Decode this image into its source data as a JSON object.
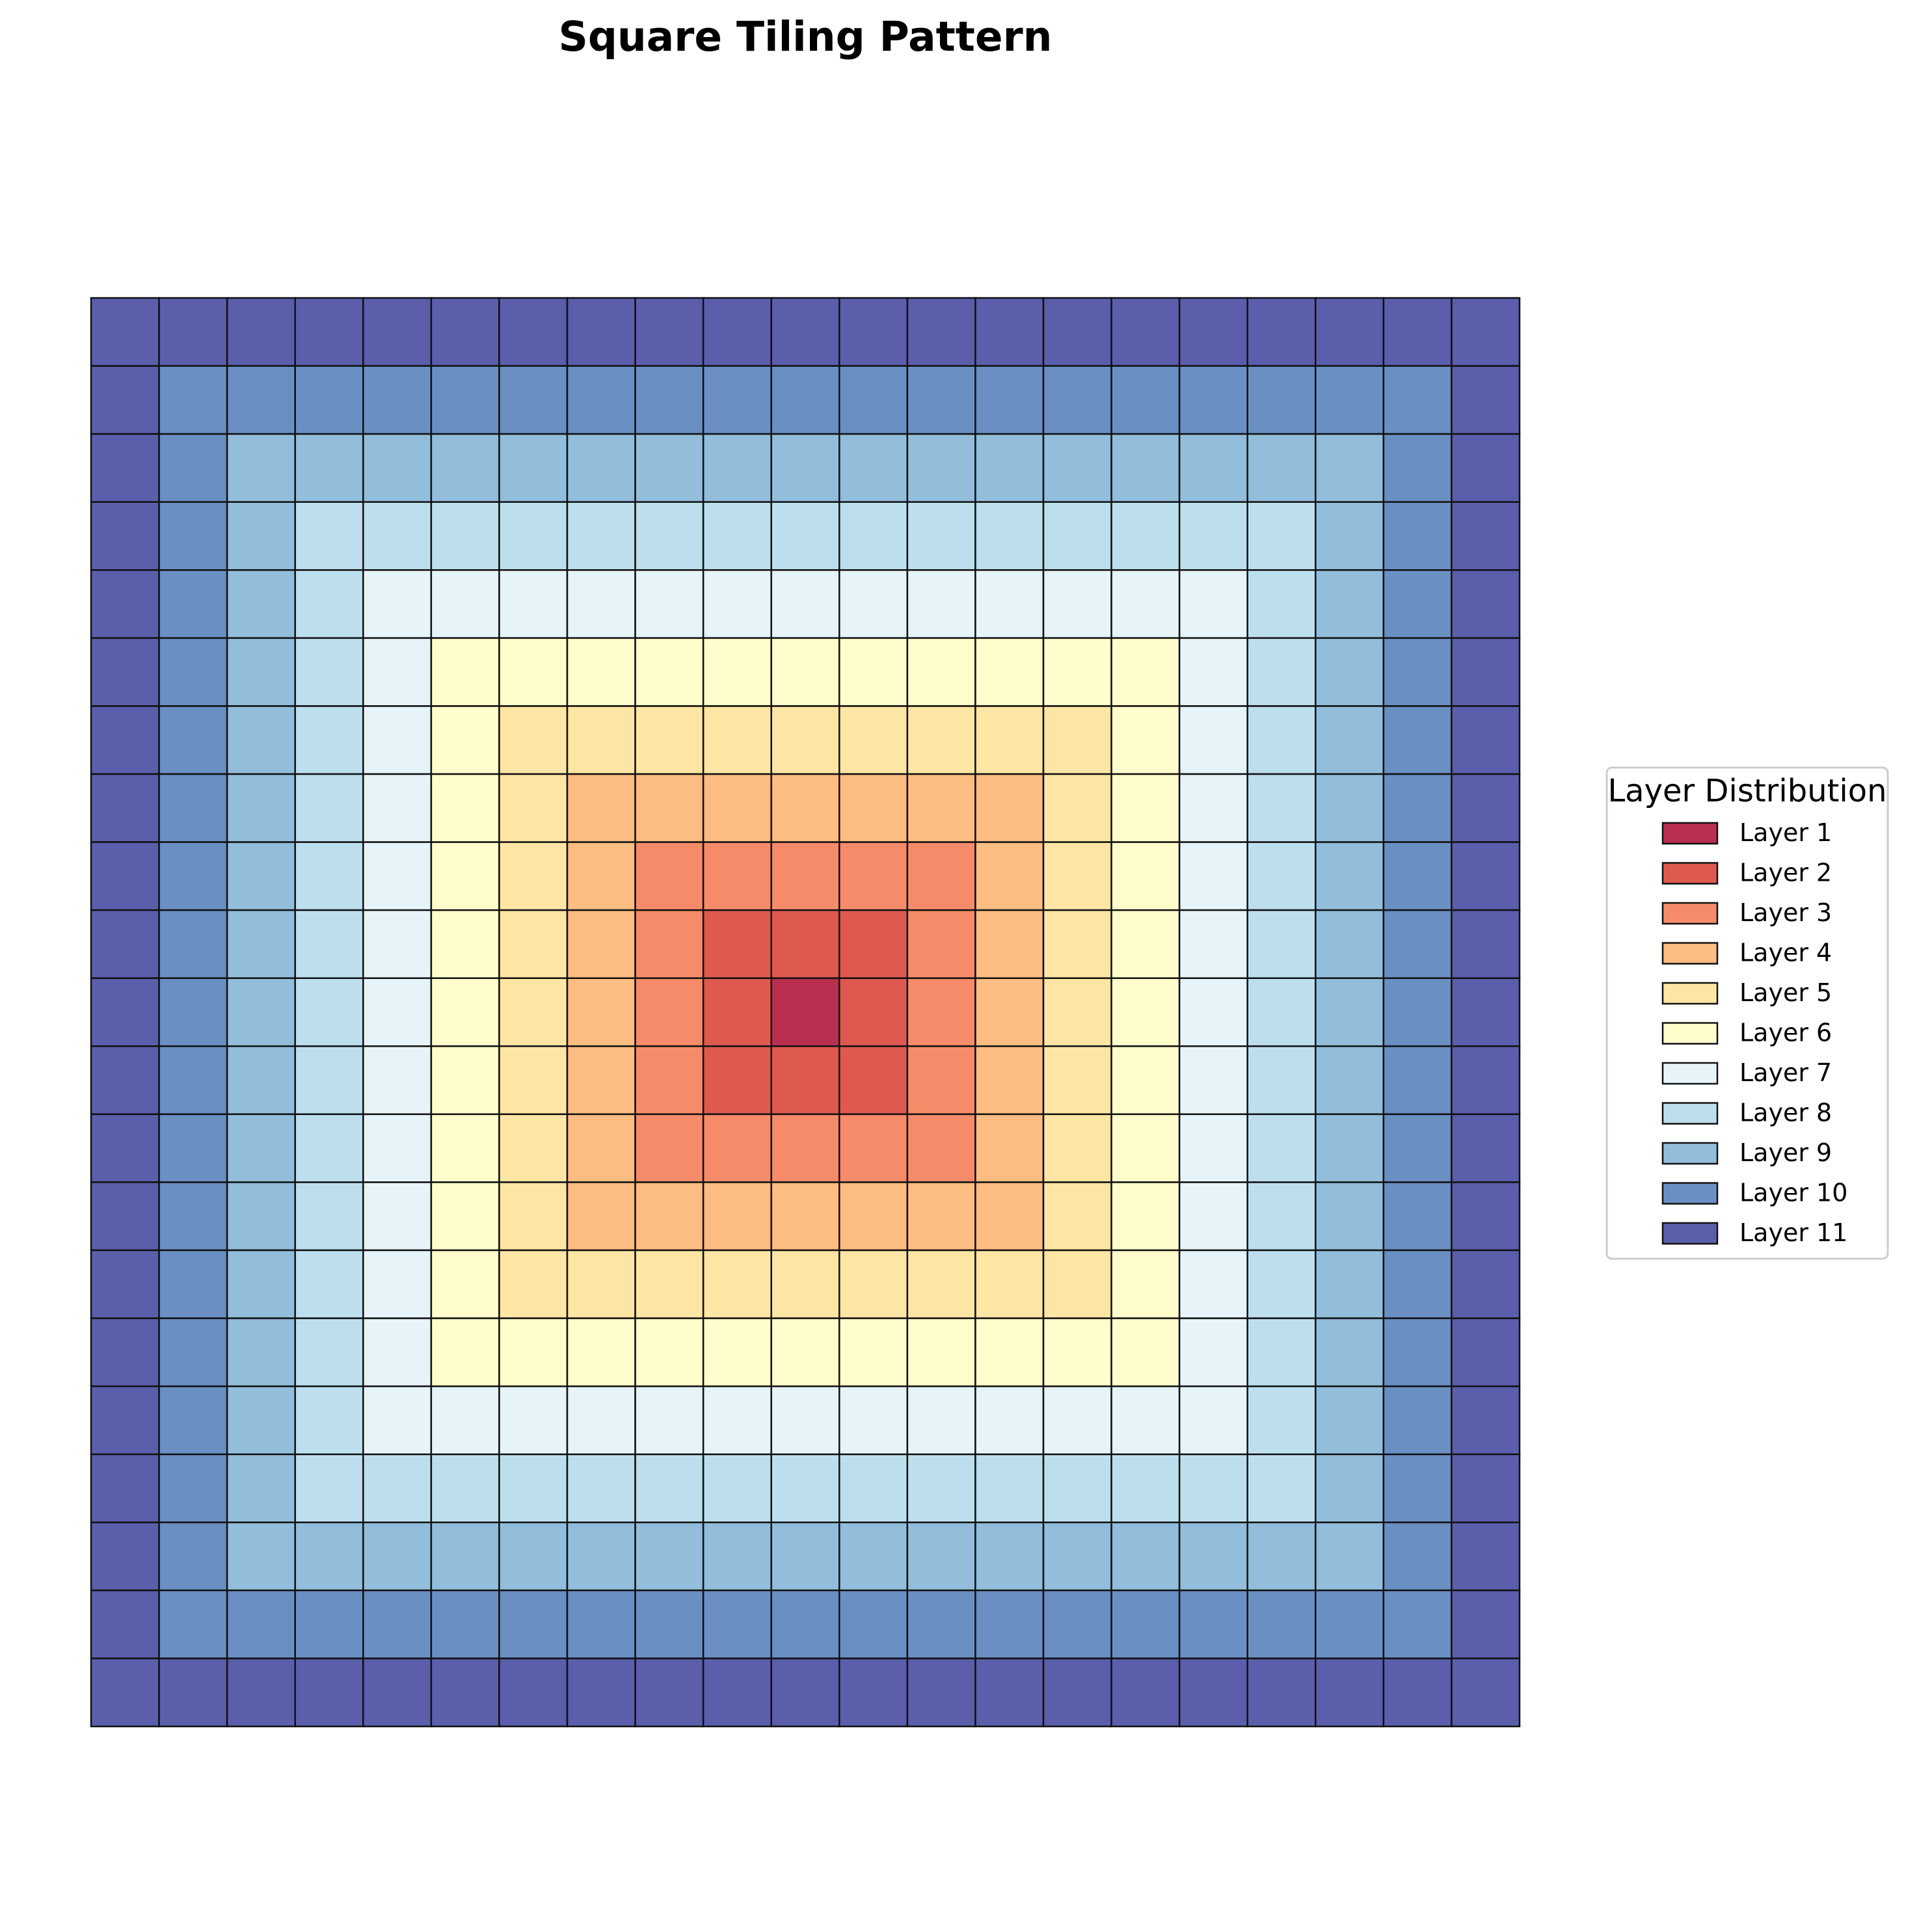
{
  "chart_data": {
    "type": "heatmap",
    "title": "Square Tiling Pattern",
    "xlabel": "",
    "ylabel": "",
    "grid_size": 21,
    "value_rule": "layer = 11 - min(row, col, 20 - row, 20 - col)",
    "axes_visible": false,
    "legend": {
      "title": "Layer Distribution",
      "placement": "right",
      "entries": [
        {
          "label": "Layer 1",
          "layer": 1,
          "color": "#b82f4f"
        },
        {
          "label": "Layer 2",
          "layer": 2,
          "color": "#de5a51"
        },
        {
          "label": "Layer 3",
          "layer": 3,
          "color": "#f68b69"
        },
        {
          "label": "Layer 4",
          "layer": 4,
          "color": "#fcbc82"
        },
        {
          "label": "Layer 5",
          "layer": 5,
          "color": "#fde5a4"
        },
        {
          "label": "Layer 6",
          "layer": 6,
          "color": "#fffdcb"
        },
        {
          "label": "Layer 7",
          "layer": 7,
          "color": "#e6f4f9"
        },
        {
          "label": "Layer 8",
          "layer": 8,
          "color": "#bddfed"
        },
        {
          "label": "Layer 9",
          "layer": 9,
          "color": "#92bddb"
        },
        {
          "label": "Layer 10",
          "layer": 10,
          "color": "#6a8fc3"
        },
        {
          "label": "Layer 11",
          "layer": 11,
          "color": "#5b5eab"
        }
      ]
    },
    "cell_edge_color": "#111111"
  }
}
